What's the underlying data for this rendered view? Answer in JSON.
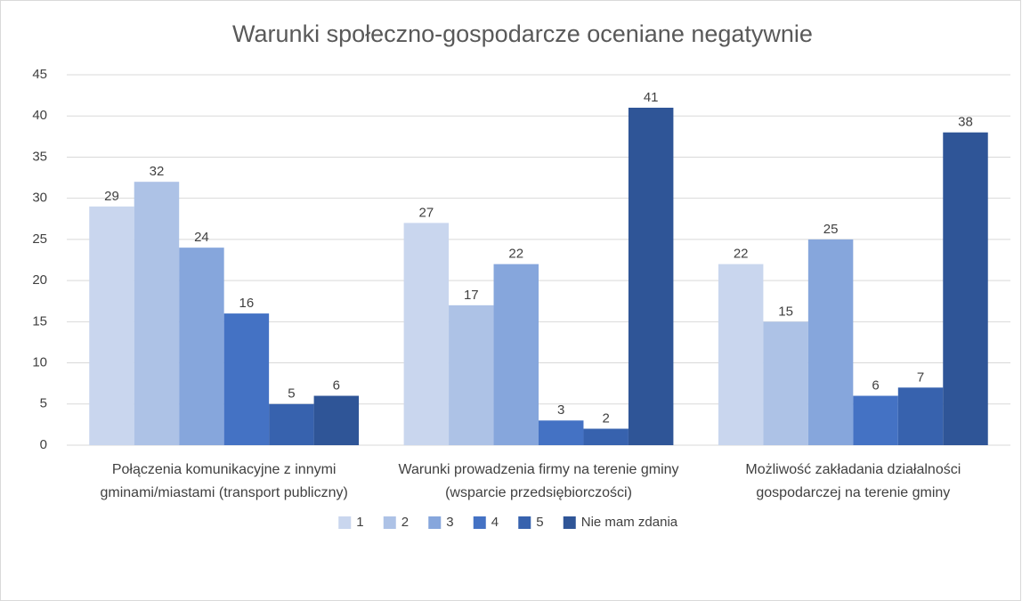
{
  "chart_data": {
    "type": "bar",
    "title": "Warunki społeczno-gospodarcze oceniane negatywnie",
    "categories": [
      "Połączenia komunikacyjne z innymi gminami/miastami (transport publiczny)",
      "Warunki prowadzenia firmy na terenie gminy (wsparcie przedsiębiorczości)",
      "Możliwość zakładania działalności gospodarczej na terenie gminy"
    ],
    "series": [
      {
        "name": "1",
        "color": "#c9d6ee",
        "values": [
          29,
          27,
          22
        ]
      },
      {
        "name": "2",
        "color": "#adc2e6",
        "values": [
          32,
          17,
          15
        ]
      },
      {
        "name": "3",
        "color": "#86a6dc",
        "values": [
          24,
          22,
          25
        ]
      },
      {
        "name": "4",
        "color": "#4472c4",
        "values": [
          16,
          3,
          6
        ]
      },
      {
        "name": "5",
        "color": "#3762ae",
        "values": [
          5,
          2,
          7
        ]
      },
      {
        "name": "Nie mam zdania",
        "color": "#2f5597",
        "values": [
          6,
          41,
          38
        ]
      }
    ],
    "ylim": [
      0,
      45
    ],
    "yticks": [
      0,
      5,
      10,
      15,
      20,
      25,
      30,
      35,
      40,
      45
    ],
    "grid": true,
    "legend": "bottom"
  }
}
